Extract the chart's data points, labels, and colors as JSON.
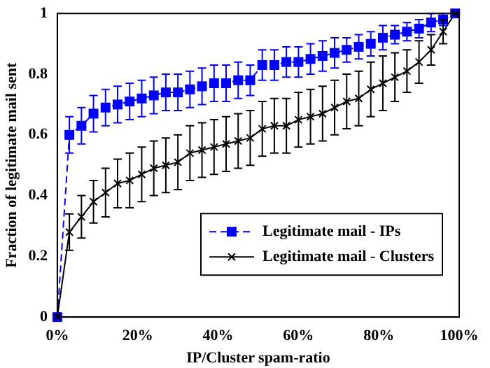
{
  "chart_data": {
    "type": "line",
    "xlabel": "IP/Cluster spam-ratio",
    "ylabel": "Fraction of legitimate mail sent",
    "x": [
      0,
      3,
      6,
      9,
      12,
      15,
      18,
      21,
      24,
      27,
      30,
      33,
      36,
      39,
      42,
      45,
      48,
      51,
      54,
      57,
      60,
      63,
      66,
      69,
      72,
      75,
      78,
      81,
      84,
      87,
      90,
      93,
      96,
      99
    ],
    "series": [
      {
        "name": "Legitimate mail - IPs",
        "color": "#0000ff",
        "marker": "square",
        "line_style": "dashed",
        "values": [
          0,
          0.6,
          0.63,
          0.67,
          0.69,
          0.7,
          0.71,
          0.72,
          0.73,
          0.74,
          0.74,
          0.75,
          0.76,
          0.77,
          0.77,
          0.78,
          0.78,
          0.83,
          0.83,
          0.84,
          0.84,
          0.85,
          0.86,
          0.87,
          0.88,
          0.89,
          0.9,
          0.92,
          0.93,
          0.94,
          0.95,
          0.97,
          0.98,
          1.0
        ],
        "errors": [
          null,
          0.06,
          0.06,
          0.06,
          0.06,
          0.06,
          0.06,
          0.06,
          0.06,
          0.06,
          0.06,
          0.06,
          0.06,
          0.06,
          0.06,
          0.06,
          0.05,
          0.05,
          0.05,
          0.05,
          0.05,
          0.05,
          0.05,
          0.05,
          0.04,
          0.04,
          0.04,
          0.04,
          0.03,
          0.03,
          0.03,
          0.03,
          0.02,
          null
        ]
      },
      {
        "name": "Legitimate mail - Clusters",
        "color": "#000000",
        "marker": "cross",
        "line_style": "solid",
        "values": [
          0,
          0.28,
          0.33,
          0.38,
          0.41,
          0.44,
          0.45,
          0.47,
          0.49,
          0.5,
          0.51,
          0.54,
          0.55,
          0.56,
          0.57,
          0.58,
          0.59,
          0.62,
          0.63,
          0.63,
          0.65,
          0.66,
          0.67,
          0.69,
          0.71,
          0.72,
          0.75,
          0.77,
          0.79,
          0.81,
          0.84,
          0.88,
          0.94,
          1.0
        ],
        "errors": [
          null,
          0.06,
          0.07,
          0.07,
          0.08,
          0.08,
          0.09,
          0.09,
          0.09,
          0.09,
          0.09,
          0.09,
          0.09,
          0.09,
          0.09,
          0.09,
          0.09,
          0.09,
          0.09,
          0.09,
          0.09,
          0.09,
          0.09,
          0.09,
          0.09,
          0.09,
          0.09,
          0.09,
          0.08,
          0.07,
          0.07,
          0.05,
          0.04,
          null
        ]
      }
    ],
    "xlim": [
      0,
      100
    ],
    "xticks": [
      {
        "value": 0,
        "label": "0%"
      },
      {
        "value": 20,
        "label": "20%"
      },
      {
        "value": 40,
        "label": "40%"
      },
      {
        "value": 60,
        "label": "60%"
      },
      {
        "value": 80,
        "label": "80%"
      },
      {
        "value": 100,
        "label": "100%"
      }
    ],
    "ylim": [
      0,
      1
    ],
    "yticks": [
      0,
      0.2,
      0.4,
      0.6,
      0.8,
      1
    ],
    "grid": false,
    "legend": "bottom right"
  }
}
